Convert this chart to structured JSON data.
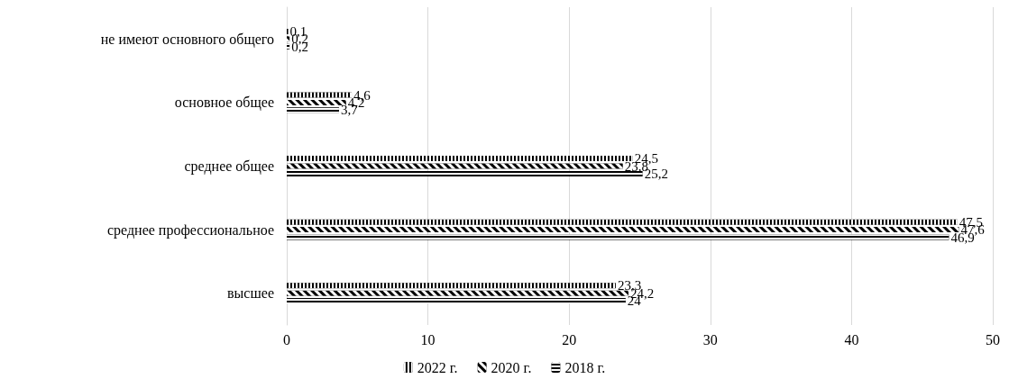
{
  "chart_data": {
    "type": "bar",
    "orientation": "horizontal",
    "categories": [
      "не имеют основного общего",
      "основное общее",
      "среднее общее",
      "среднее профессиональное",
      "высшее"
    ],
    "series": [
      {
        "name": "2022 г.",
        "color": "#000000",
        "values": [
          0.1,
          4.6,
          24.5,
          47.5,
          23.3
        ],
        "value_labels": [
          "0,1",
          "4,6",
          "24,5",
          "47,5",
          "23,3"
        ]
      },
      {
        "name": "2020 г.",
        "color": "#000000",
        "values": [
          0.2,
          4.2,
          23.8,
          47.6,
          24.2
        ],
        "value_labels": [
          "0,2",
          "4,2",
          "23,8",
          "47,6",
          "24,2"
        ]
      },
      {
        "name": "2018 г.",
        "color": "#000000",
        "values": [
          0.2,
          3.7,
          25.2,
          46.9,
          24
        ],
        "value_labels": [
          "0,2",
          "3,7",
          "25,2",
          "46,9",
          "24"
        ]
      }
    ],
    "xlim": [
      0,
      50
    ],
    "xticks": [
      0,
      10,
      20,
      30,
      40,
      50
    ],
    "grid": "x",
    "legend": "bottom"
  }
}
